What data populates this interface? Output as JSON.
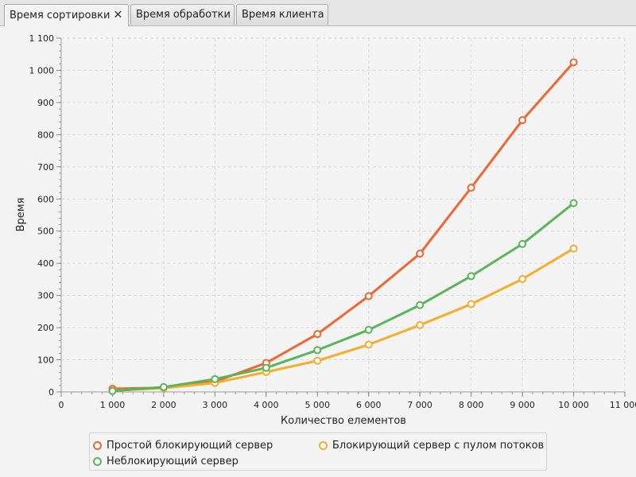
{
  "tabs": [
    {
      "label": "Время сортировки",
      "active": true,
      "close_glyph": "✕"
    },
    {
      "label": "Время обработки",
      "active": false
    },
    {
      "label": "Время клиента",
      "active": false
    }
  ],
  "chart_data": {
    "type": "line",
    "title": "",
    "xlabel": "Количество елементов",
    "ylabel": "Время",
    "xlim": [
      0,
      11000
    ],
    "ylim": [
      0,
      1100
    ],
    "x_ticks": [
      0,
      1000,
      2000,
      3000,
      4000,
      5000,
      6000,
      7000,
      8000,
      9000,
      10000,
      11000
    ],
    "x_tick_labels": [
      "0",
      "1 000",
      "2 000",
      "3 000",
      "4 000",
      "5 000",
      "6 000",
      "7 000",
      "8 000",
      "9 000",
      "10 000",
      "11 000"
    ],
    "y_ticks": [
      0,
      100,
      200,
      300,
      400,
      500,
      600,
      700,
      800,
      900,
      1000,
      1100
    ],
    "y_tick_labels": [
      "0",
      "100",
      "200",
      "300",
      "400",
      "500",
      "600",
      "700",
      "800",
      "900",
      "1 000",
      "1 100"
    ],
    "grid": true,
    "legend_position": "bottom",
    "x": [
      1000,
      2000,
      3000,
      4000,
      5000,
      6000,
      7000,
      8000,
      9000,
      10000
    ],
    "series": [
      {
        "name": "Простой блокирующий сервер",
        "color": "#f06633",
        "values": [
          10,
          13,
          32,
          90,
          180,
          298,
          430,
          635,
          845,
          1025
        ]
      },
      {
        "name": "Блокирующий сервер с пулом потоков",
        "color": "#f5ad2a",
        "values": [
          4,
          12,
          28,
          62,
          97,
          147,
          208,
          273,
          351,
          446
        ]
      },
      {
        "name": "Неблокирующий сервер",
        "color": "#5ab55a",
        "values": [
          3,
          15,
          40,
          75,
          130,
          193,
          270,
          360,
          460,
          587
        ]
      }
    ]
  }
}
